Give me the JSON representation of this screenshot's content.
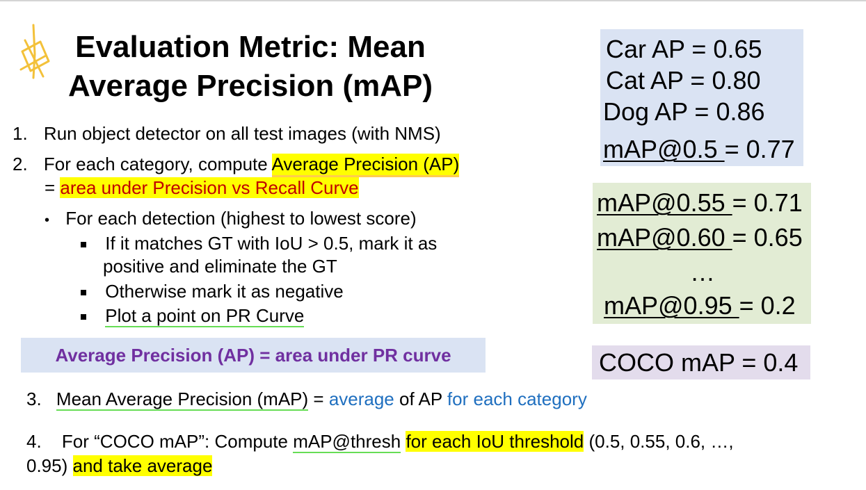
{
  "title": "Evaluation Metric: Mean Average Precision (mAP)",
  "steps": {
    "s1_num": "1.",
    "s1_text": "Run object detector on all test images (with NMS)",
    "s2_num": "2.",
    "s2_text_a": "For each category, compute ",
    "s2_text_hl": "Average Precision (AP)",
    "s2_eq": "= ",
    "s2_area": "area under Precision vs Recall Curve",
    "sub_bullet": "For each detection (highest to lowest score)",
    "sub1_line1": "If it matches GT with IoU > 0.5, mark it as",
    "sub1_line2": "positive and eliminate the GT",
    "sub2": "Otherwise mark it as negative",
    "sub3": "Plot a point on PR Curve"
  },
  "banner": "Average Precision (AP) = area under PR curve",
  "step3": {
    "num": "3.",
    "a": "Mean Average Precision (mAP)",
    "b": " = ",
    "c": "average",
    "d": " of AP ",
    "e": "for each category"
  },
  "step4": {
    "num": "4.",
    "a": "For “COCO mAP”: Compute ",
    "b": "mAP@thresh",
    "c": " ",
    "d": "for each IoU threshold",
    "e": " (0.5, 0.55, 0.6, …,",
    "f": "0.95) ",
    "g": "and take average"
  },
  "ap_box": {
    "car": "Car AP = 0.65",
    "cat": "Cat AP = 0.80",
    "dog": "Dog AP = 0.86",
    "map_label": "mAP@0.5 ",
    "map_value": "= 0.77"
  },
  "thresh_box": {
    "r1_label": "mAP@0.55 ",
    "r1_value": "= 0.71",
    "r2_label": "mAP@0.60 ",
    "r2_value": "= 0.65",
    "ellipsis": "…",
    "r3_label": "mAP@0.95 ",
    "r3_value": "= 0.2"
  },
  "coco_box": "COCO mAP = 0.4",
  "colors": {
    "highlight": "#ffff00",
    "red_text": "#c00000",
    "purple_text": "#7030a0",
    "blue_text": "#1f6fbf",
    "blue_box": "#dae3f3",
    "green_box": "#e2ecd4",
    "purple_box": "#e3dcec"
  }
}
